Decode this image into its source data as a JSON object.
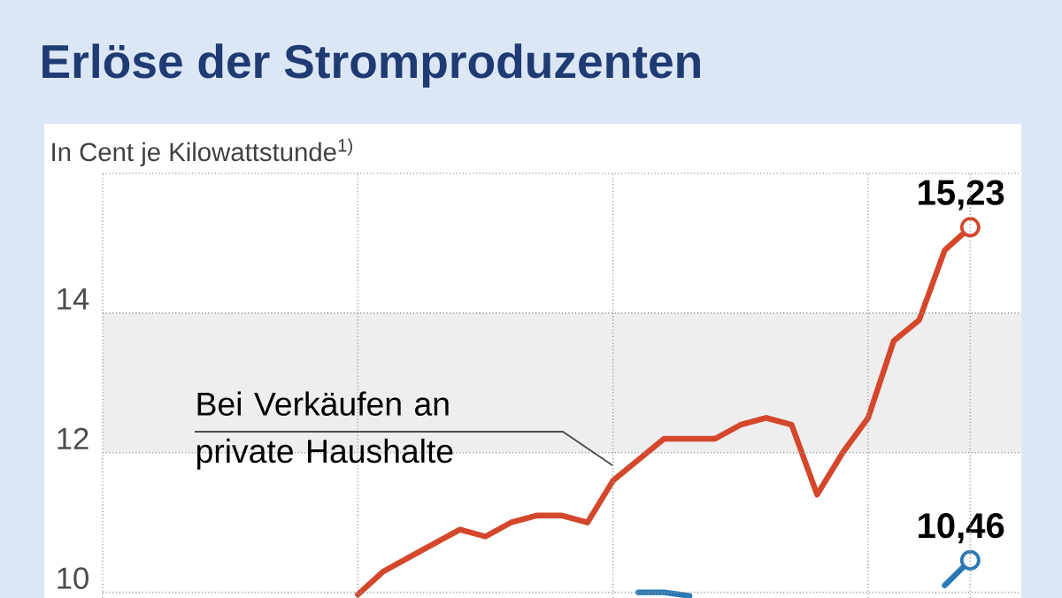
{
  "chart_data": {
    "type": "line",
    "title": "Erlöse der Stromproduzenten",
    "ylabel": "In Cent je Kilowattstunde$^{1)}$",
    "categories": [
      null,
      null,
      null,
      null,
      null,
      null,
      null,
      null,
      null,
      null,
      null,
      null,
      null,
      null,
      null,
      null,
      null,
      null,
      null,
      null,
      null,
      null,
      null,
      null,
      null,
      null,
      null,
      null,
      null,
      null,
      null,
      null,
      null,
      null,
      null
    ],
    "series": [
      {
        "color": "#d4472b",
        "values": [
          null,
          null,
          null,
          null,
          null,
          null,
          null,
          null,
          null,
          null,
          9.97,
          10.3,
          10.5,
          10.7,
          10.9,
          10.8,
          11.0,
          11.1,
          11.1,
          11.0,
          11.6,
          11.9,
          12.2,
          12.2,
          12.2,
          12.4,
          12.5,
          12.4,
          11.4,
          12.0,
          12.5,
          13.6,
          13.9,
          14.9,
          15.23
        ],
        "value_labels": [
          null,
          null,
          null,
          null,
          null,
          null,
          null,
          null,
          null,
          null,
          null,
          null,
          null,
          null,
          null,
          null,
          null,
          null,
          null,
          null,
          null,
          null,
          null,
          null,
          null,
          null,
          null,
          null,
          null,
          null,
          null,
          null,
          null,
          null,
          "15,23"
        ]
      },
      {
        "color": "#2a78b5",
        "values": [
          null,
          null,
          null,
          null,
          null,
          null,
          null,
          null,
          null,
          null,
          null,
          null,
          null,
          null,
          null,
          null,
          null,
          null,
          null,
          null,
          null,
          10.0,
          10.0,
          9.95,
          null,
          null,
          null,
          null,
          null,
          null,
          null,
          null,
          null,
          10.1,
          10.46
        ],
        "value_labels": [
          null,
          null,
          null,
          null,
          null,
          null,
          null,
          null,
          null,
          null,
          null,
          null,
          null,
          null,
          null,
          null,
          null,
          null,
          null,
          null,
          null,
          null,
          null,
          null,
          null,
          null,
          null,
          null,
          null,
          null,
          null,
          null,
          null,
          null,
          "10,46"
        ]
      }
    ],
    "ylim": [
      9.92,
      16
    ],
    "yticks": [
      10,
      12,
      14,
      {
        "value": 16,
        "label": null
      }
    ],
    "grid": true,
    "bands": [
      {
        "axis": "y",
        "from": 12,
        "to": 14,
        "color": "#eeeeee"
      }
    ],
    "annotations": [
      "Bei Verkäufen an private Haushalte"
    ]
  }
}
